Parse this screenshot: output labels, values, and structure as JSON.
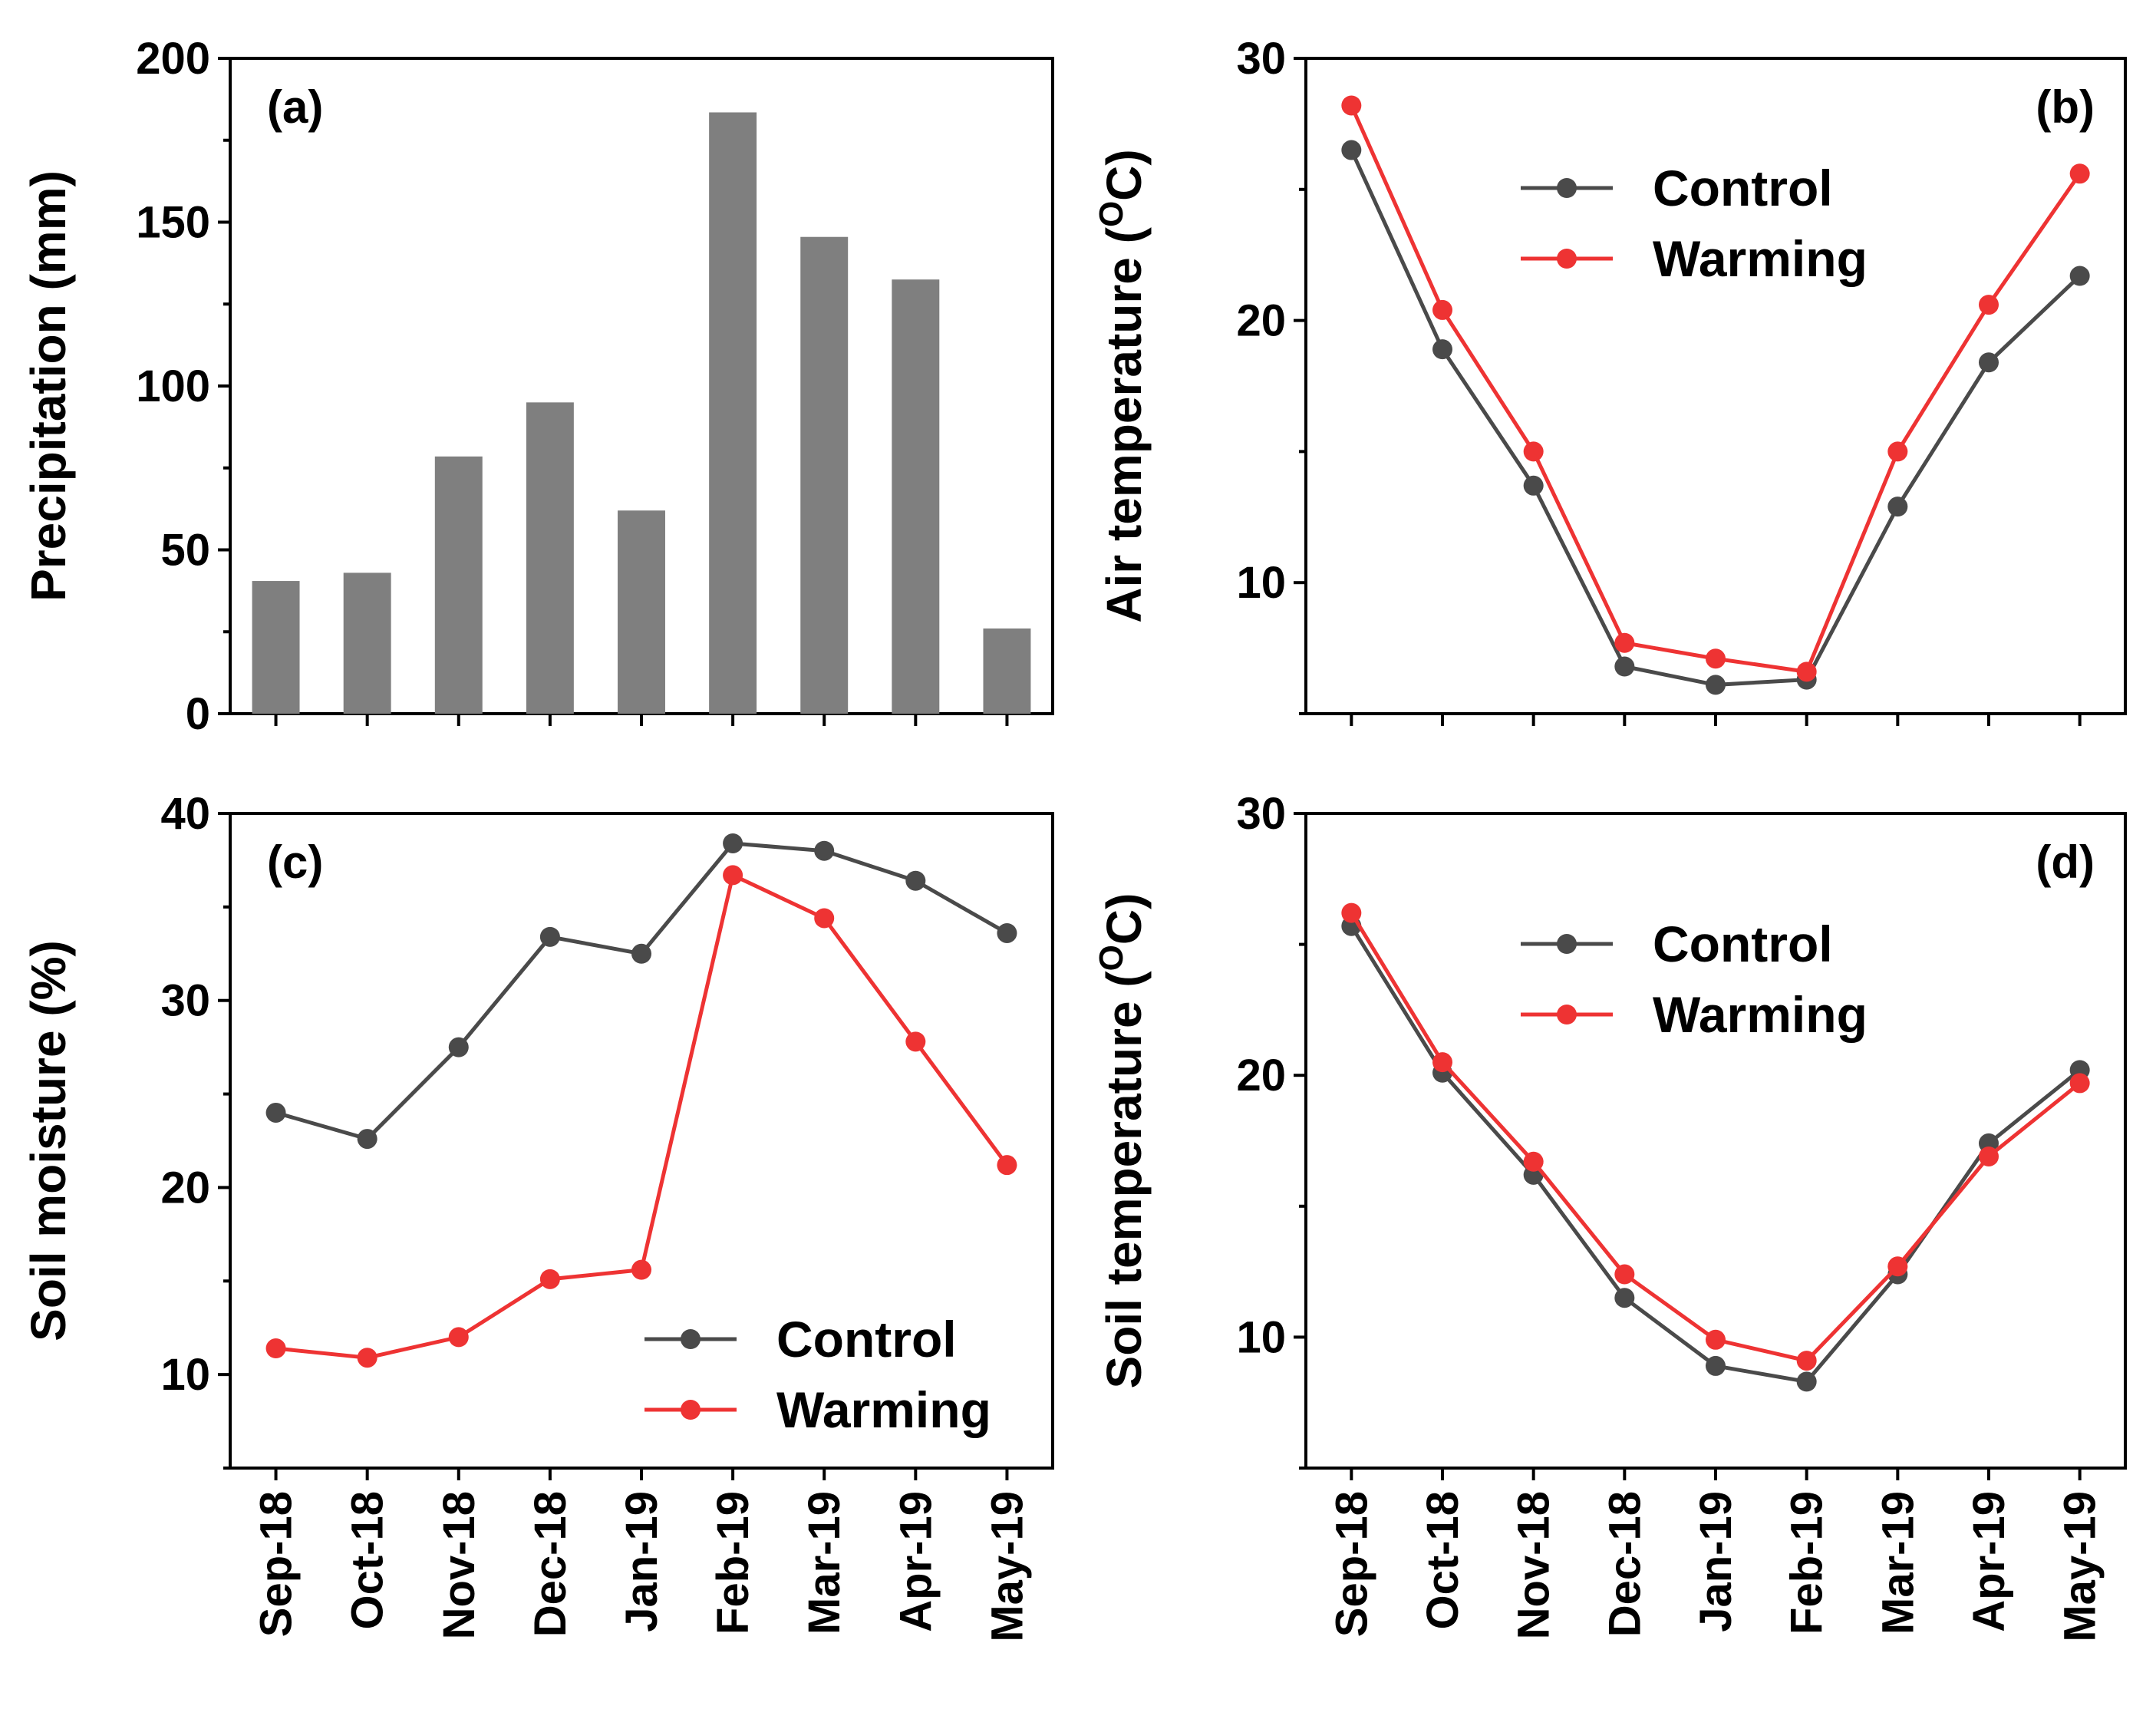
{
  "colors": {
    "control": "#4a4a4a",
    "warming": "#ee3333",
    "bar": "#7f7f7f",
    "axis": "#000000"
  },
  "chart_data": [
    {
      "id": "a",
      "panel_label": "(a)",
      "type": "bar",
      "title": "",
      "xlabel": "",
      "ylabel": "Precipitation (mm)",
      "categories": [
        "Sep-18",
        "Oct-18",
        "Nov-18",
        "Dec-18",
        "Jan-19",
        "Feb-19",
        "Mar-19",
        "Apr-19",
        "May-19"
      ],
      "values": [
        40.5,
        43,
        78.5,
        95,
        62,
        183.5,
        145.5,
        132.5,
        26
      ],
      "ylim": [
        0,
        200
      ],
      "yticks": [
        0,
        50,
        100,
        150,
        200
      ],
      "show_x_labels": false
    },
    {
      "id": "b",
      "panel_label": "(b)",
      "type": "line",
      "title": "",
      "xlabel": "",
      "ylabel": "Air temperature (",
      "ylabel_sup": "O",
      "ylabel_suffix": "C)",
      "categories": [
        "Sep-18",
        "Oct-18",
        "Nov-18",
        "Dec-18",
        "Jan-19",
        "Feb-19",
        "Mar-19",
        "Apr-19",
        "May-19"
      ],
      "series": [
        {
          "name": "Control",
          "values": [
            26.5,
            18.9,
            13.7,
            6.8,
            6.1,
            6.3,
            12.9,
            18.4,
            21.7
          ]
        },
        {
          "name": "Warming",
          "values": [
            28.2,
            20.4,
            15.0,
            7.7,
            7.1,
            6.6,
            15.0,
            20.6,
            25.6
          ]
        }
      ],
      "ylim": [
        5,
        30
      ],
      "yticks": [
        10,
        20,
        30
      ],
      "legend_position": "top-center",
      "show_x_labels": false
    },
    {
      "id": "c",
      "panel_label": "(c)",
      "type": "line",
      "title": "",
      "xlabel": "",
      "ylabel": "Soil moisture (%)",
      "categories": [
        "Sep-18",
        "Oct-18",
        "Nov-18",
        "Dec-18",
        "Jan-19",
        "Feb-19",
        "Mar-19",
        "Apr-19",
        "May-19"
      ],
      "series": [
        {
          "name": "Control",
          "values": [
            24.0,
            22.6,
            27.5,
            33.4,
            32.5,
            38.4,
            38.0,
            36.4,
            33.6
          ]
        },
        {
          "name": "Warming",
          "values": [
            11.4,
            10.9,
            12.0,
            15.1,
            15.6,
            36.7,
            34.4,
            27.8,
            21.2
          ]
        }
      ],
      "ylim": [
        5,
        40
      ],
      "yticks": [
        10,
        20,
        30,
        40
      ],
      "legend_position": "bottom-right",
      "show_x_labels": true
    },
    {
      "id": "d",
      "panel_label": "(d)",
      "type": "line",
      "title": "",
      "xlabel": "",
      "ylabel": "Soil temperature (",
      "ylabel_sup": "O",
      "ylabel_suffix": "C)",
      "categories": [
        "Sep-18",
        "Oct-18",
        "Nov-18",
        "Dec-18",
        "Jan-19",
        "Feb-19",
        "Mar-19",
        "Apr-19",
        "May-19"
      ],
      "series": [
        {
          "name": "Control",
          "values": [
            25.7,
            20.1,
            16.2,
            11.5,
            8.9,
            8.3,
            12.4,
            17.4,
            20.2
          ]
        },
        {
          "name": "Warming",
          "values": [
            26.2,
            20.5,
            16.7,
            12.4,
            9.9,
            9.1,
            12.7,
            16.9,
            19.7
          ]
        }
      ],
      "ylim": [
        5,
        30
      ],
      "yticks": [
        10,
        20,
        30
      ],
      "legend_position": "top-center",
      "show_x_labels": true
    }
  ]
}
